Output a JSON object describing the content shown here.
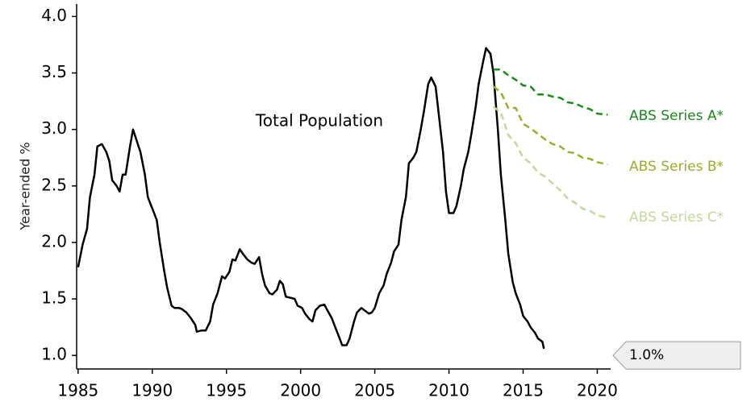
{
  "chart_data": {
    "type": "line",
    "y_label": "Year-ended %",
    "xlim": [
      1984.9,
      2020.9
    ],
    "xticks": [
      1985,
      1990,
      1995,
      2000,
      2005,
      2010,
      2015,
      2020
    ],
    "ylim": [
      0.88,
      4.11
    ],
    "yticks": [
      {
        "value": 1,
        "label": "1.0"
      },
      1.5,
      {
        "value": 2,
        "label": "2.0"
      },
      2.5,
      {
        "value": 3,
        "label": "3.0"
      },
      3.5,
      {
        "value": 4,
        "label": "4.0"
      }
    ],
    "series": [
      {
        "name": "Total Population",
        "color": "#000000",
        "dashed": false,
        "x": [
          1985.0,
          1985.3,
          1985.6,
          1985.8,
          1986.1,
          1986.3,
          1986.6,
          1986.9,
          1987.1,
          1987.3,
          1987.6,
          1987.8,
          1988.0,
          1988.2,
          1988.5,
          1988.7,
          1989.0,
          1989.2,
          1989.5,
          1989.7,
          1990.0,
          1990.3,
          1990.5,
          1990.8,
          1991.0,
          1991.3,
          1991.5,
          1991.8,
          1992.0,
          1992.3,
          1992.6,
          1992.9,
          1993.0,
          1993.3,
          1993.6,
          1993.9,
          1994.1,
          1994.4,
          1994.7,
          1994.9,
          1995.2,
          1995.4,
          1995.6,
          1995.9,
          1996.1,
          1996.4,
          1996.7,
          1996.9,
          1997.2,
          1997.4,
          1997.6,
          1997.9,
          1998.1,
          1998.4,
          1998.6,
          1998.8,
          1999.0,
          1999.3,
          1999.6,
          1999.8,
          2000.1,
          2000.3,
          2000.6,
          2000.8,
          2001.0,
          2001.3,
          2001.6,
          2001.8,
          2002.1,
          2002.3,
          2002.6,
          2002.8,
          2003.1,
          2003.3,
          2003.6,
          2003.8,
          2004.1,
          2004.3,
          2004.6,
          2004.8,
          2005.0,
          2005.3,
          2005.6,
          2005.8,
          2006.1,
          2006.3,
          2006.6,
          2006.8,
          2007.1,
          2007.3,
          2007.6,
          2007.8,
          2008.1,
          2008.3,
          2008.6,
          2008.8,
          2009.1,
          2009.3,
          2009.6,
          2009.8,
          2010.0,
          2010.3,
          2010.5,
          2010.8,
          2011.0,
          2011.3,
          2011.5,
          2011.8,
          2012.0,
          2012.3,
          2012.5,
          2012.8,
          2013.0,
          2013.3,
          2013.5,
          2013.8,
          2014.0,
          2014.3,
          2014.5,
          2014.8,
          2015.0,
          2015.3,
          2015.5,
          2015.8,
          2016.0,
          2016.3,
          2016.4
        ],
        "values": [
          1.78,
          1.98,
          2.12,
          2.4,
          2.6,
          2.85,
          2.87,
          2.8,
          2.72,
          2.55,
          2.5,
          2.45,
          2.6,
          2.6,
          2.85,
          3.0,
          2.88,
          2.8,
          2.6,
          2.4,
          2.3,
          2.2,
          2.0,
          1.75,
          1.6,
          1.44,
          1.42,
          1.42,
          1.41,
          1.38,
          1.33,
          1.27,
          1.21,
          1.22,
          1.22,
          1.3,
          1.45,
          1.55,
          1.7,
          1.68,
          1.74,
          1.85,
          1.84,
          1.94,
          1.9,
          1.85,
          1.82,
          1.81,
          1.87,
          1.72,
          1.62,
          1.55,
          1.54,
          1.58,
          1.66,
          1.63,
          1.52,
          1.51,
          1.5,
          1.44,
          1.42,
          1.37,
          1.32,
          1.3,
          1.4,
          1.44,
          1.45,
          1.4,
          1.33,
          1.26,
          1.16,
          1.09,
          1.09,
          1.15,
          1.3,
          1.38,
          1.42,
          1.4,
          1.37,
          1.38,
          1.42,
          1.55,
          1.62,
          1.72,
          1.82,
          1.92,
          1.98,
          2.2,
          2.4,
          2.7,
          2.75,
          2.8,
          3.0,
          3.15,
          3.4,
          3.46,
          3.38,
          3.15,
          2.8,
          2.45,
          2.26,
          2.26,
          2.32,
          2.5,
          2.65,
          2.8,
          2.95,
          3.2,
          3.4,
          3.6,
          3.72,
          3.67,
          3.5,
          3.0,
          2.6,
          2.2,
          1.9,
          1.65,
          1.55,
          1.45,
          1.35,
          1.3,
          1.25,
          1.2,
          1.15,
          1.12,
          1.06
        ]
      },
      {
        "name": "ABS Series A*",
        "color": "#1a8a1a",
        "dashed": true,
        "x": [
          2013.0,
          2013.5,
          2014.0,
          2014.5,
          2015.0,
          2015.5,
          2016.0,
          2016.5,
          2017.0,
          2017.5,
          2018.0,
          2018.5,
          2019.0,
          2019.5,
          2020.0,
          2020.7
        ],
        "values": [
          3.53,
          3.53,
          3.48,
          3.44,
          3.39,
          3.38,
          3.31,
          3.31,
          3.29,
          3.28,
          3.24,
          3.23,
          3.2,
          3.18,
          3.14,
          3.13
        ]
      },
      {
        "name": "ABS Series B*",
        "color": "#9aae2a",
        "dashed": true,
        "x": [
          2013.0,
          2013.5,
          2014.0,
          2014.5,
          2015.0,
          2015.5,
          2016.0,
          2016.5,
          2017.0,
          2017.5,
          2018.0,
          2018.5,
          2019.0,
          2019.5,
          2020.0,
          2020.7
        ],
        "values": [
          3.38,
          3.33,
          3.19,
          3.19,
          3.05,
          3.01,
          2.96,
          2.91,
          2.87,
          2.85,
          2.8,
          2.79,
          2.75,
          2.74,
          2.71,
          2.69
        ]
      },
      {
        "name": "ABS Series C*",
        "color": "#c4d89a",
        "dashed": true,
        "x": [
          2013.0,
          2013.5,
          2014.0,
          2014.5,
          2015.0,
          2015.5,
          2016.0,
          2016.5,
          2017.0,
          2017.5,
          2018.0,
          2018.5,
          2019.0,
          2019.5,
          2020.0,
          2020.7
        ],
        "values": [
          3.2,
          3.15,
          2.95,
          2.88,
          2.75,
          2.7,
          2.62,
          2.58,
          2.52,
          2.46,
          2.39,
          2.35,
          2.3,
          2.28,
          2.24,
          2.22
        ]
      }
    ],
    "callout": {
      "value": 1.0,
      "label": "1.0%"
    }
  }
}
